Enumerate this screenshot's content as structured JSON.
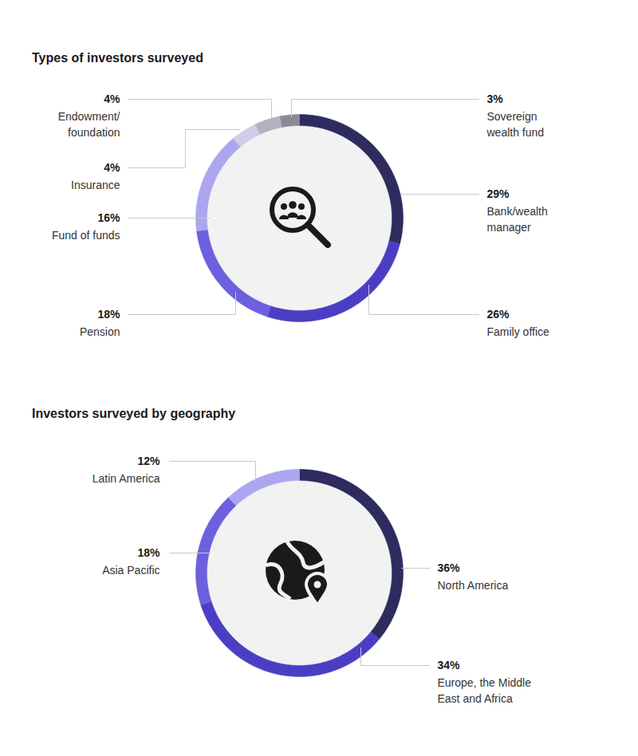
{
  "chart_data": [
    {
      "type": "donut",
      "title": "Types of investors surveyed",
      "categories": [
        "Bank/wealth\nmanager",
        "Family office",
        "Pension",
        "Fund of funds",
        "Insurance",
        "Endowment/\nfoundation",
        "Sovereign\nwealth fund"
      ],
      "values": [
        29,
        26,
        18,
        16,
        4,
        4,
        3
      ],
      "value_labels": [
        "29%",
        "26%",
        "18%",
        "16%",
        "4%",
        "4%",
        "3%"
      ],
      "colors": [
        "#2e2b5f",
        "#4a3fc4",
        "#6c60de",
        "#aca6f0",
        "#cfcde8",
        "#b3b1c4",
        "#8c8a99"
      ],
      "data_labels": true
    },
    {
      "type": "donut",
      "title": "Investors surveyed by geography",
      "categories": [
        "North America",
        "Europe, the Middle\nEast and Africa",
        "Asia Pacific",
        "Latin America"
      ],
      "values": [
        36,
        34,
        18,
        12
      ],
      "value_labels": [
        "36%",
        "34%",
        "18%",
        "12%"
      ],
      "colors": [
        "#2e2b5f",
        "#4a3fc4",
        "#6c60de",
        "#aca6f0"
      ],
      "data_labels": true
    }
  ]
}
